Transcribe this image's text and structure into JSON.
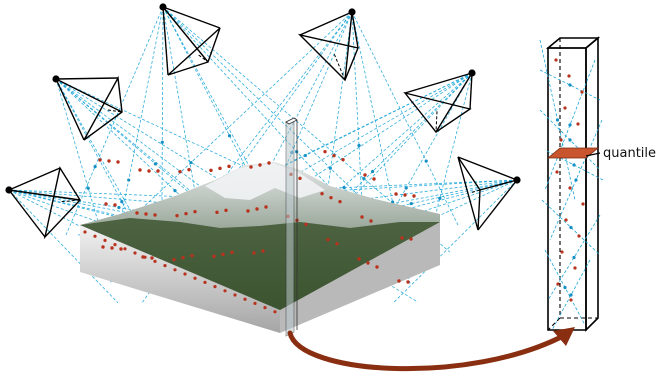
{
  "figure": {
    "label_quantile": "quantile",
    "colors": {
      "ray": "#1aa6d8",
      "ray_point": "#1590c4",
      "sample_point": "#b8321e",
      "slab": "#c8552e",
      "arrow": "#8a2e12",
      "camera": "#000000",
      "terrain_dark": "#3d5530",
      "terrain_light": "#dfe3e4",
      "base_light": "#ececec",
      "base_dark": "#a9a9a9"
    },
    "icons": {
      "camera": "camera-frustum-icon",
      "arrow": "curved-arrow-icon"
    }
  }
}
